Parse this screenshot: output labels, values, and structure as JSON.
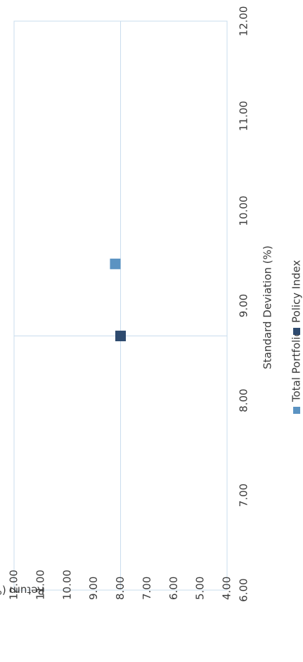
{
  "chart_data": {
    "type": "scatter",
    "title": "",
    "xlabel": "Standard Deviation (%)",
    "ylabel": "Return (%)",
    "xlim": [
      6.0,
      12.0
    ],
    "ylim": [
      4.0,
      12.0
    ],
    "x_ticks": [
      "6.00",
      "7.00",
      "8.00",
      "9.00",
      "10.00",
      "11.00",
      "12.00"
    ],
    "y_ticks": [
      "4.00",
      "5.00",
      "6.00",
      "7.00",
      "8.00",
      "9.00",
      "10.00",
      "11.00",
      "12.00"
    ],
    "orientation": "rotated-90-clockwise",
    "reference_lines": {
      "x": 8.68,
      "y": 8.0
    },
    "grid": false,
    "legend_position": "bottom",
    "series": [
      {
        "name": "Total Portfolio",
        "color": "#5b93c2",
        "marker": "square",
        "points": [
          {
            "x": 9.44,
            "y": 8.2
          }
        ]
      },
      {
        "name": "Policy Index",
        "color": "#2e4a6e",
        "marker": "square",
        "points": [
          {
            "x": 8.68,
            "y": 8.0
          }
        ]
      }
    ]
  }
}
